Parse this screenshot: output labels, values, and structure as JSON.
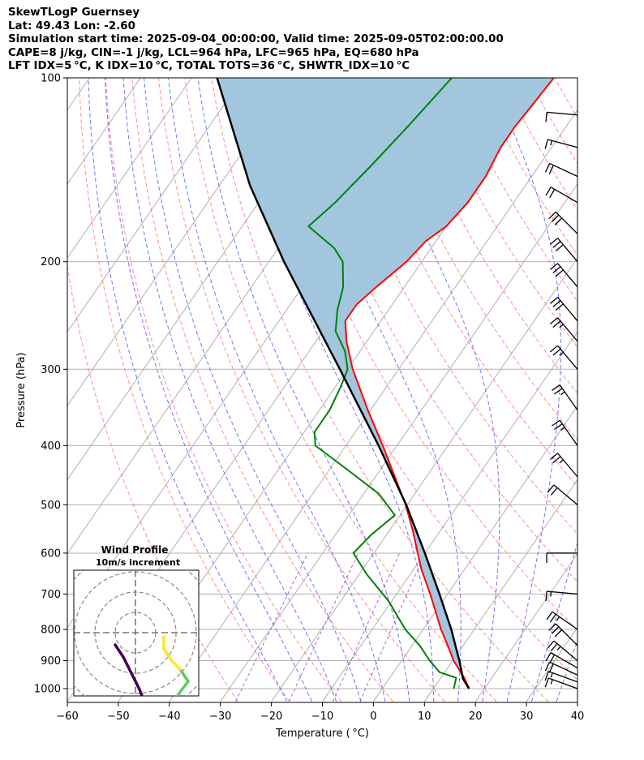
{
  "header": {
    "line1": "SkewTLogP Guernsey",
    "line2": "Lat: 49.43   Lon: -2.60",
    "line3": "Simulation start time: 2025-09-04_00:00:00, Valid time: 2025-09-05T02:00:00.00",
    "line4": "CAPE=8 j/kg, CIN=-1 j/kg, LCL=964 hPa, LFC=965 hPa, EQ=680 hPa",
    "line5": "LFT IDX=5 °C, K IDX=10 °C, TOTAL TOTS=36 °C, SHWTR_IDX=10 °C"
  },
  "chart_data": {
    "type": "line",
    "title": "SkewTLogP Guernsey",
    "xlabel": "Temperature ( °C)",
    "ylabel": "Pressure (hPa)",
    "xlim": [
      -60,
      40
    ],
    "ylim": [
      1050,
      100
    ],
    "x_ticks": [
      "−60",
      "−50",
      "−40",
      "−30",
      "−20",
      "−10",
      "0",
      "10",
      "20",
      "30",
      "40"
    ],
    "y_ticks": [
      "100",
      "200",
      "300",
      "400",
      "500",
      "600",
      "700",
      "800",
      "900",
      "1000"
    ],
    "colors": {
      "temperature": "#ff0000",
      "dewpoint": "#008000",
      "parcel": "#000000",
      "cape_fill": "#a3c6df",
      "dry_adiabat": "#ff7070",
      "moist_adiabat": "#5a5aff",
      "mixing_ratio": "#9940d0",
      "isotherm": "#b0b0b0"
    },
    "series": [
      {
        "name": "Temperature",
        "color": "#ff0000",
        "points": [
          {
            "p": 1000,
            "t": 17.0
          },
          {
            "p": 960,
            "t": 14.6
          },
          {
            "p": 900,
            "t": 10.2
          },
          {
            "p": 850,
            "t": 7.0
          },
          {
            "p": 800,
            "t": 3.5
          },
          {
            "p": 700,
            "t": -3.4
          },
          {
            "p": 640,
            "t": -8.3
          },
          {
            "p": 600,
            "t": -11.4
          },
          {
            "p": 550,
            "t": -15.5
          },
          {
            "p": 500,
            "t": -20.3
          },
          {
            "p": 450,
            "t": -26.2
          },
          {
            "p": 400,
            "t": -32.8
          },
          {
            "p": 350,
            "t": -40.5
          },
          {
            "p": 300,
            "t": -49.0
          },
          {
            "p": 270,
            "t": -54.0
          },
          {
            "p": 250,
            "t": -57.0
          },
          {
            "p": 235,
            "t": -57.0
          },
          {
            "p": 220,
            "t": -55.5
          },
          {
            "p": 200,
            "t": -53.0
          },
          {
            "p": 185,
            "t": -52.0
          },
          {
            "p": 175,
            "t": -50.0
          },
          {
            "p": 160,
            "t": -49.0
          },
          {
            "p": 145,
            "t": -49.0
          },
          {
            "p": 130,
            "t": -50.0
          },
          {
            "p": 120,
            "t": -50.0
          },
          {
            "p": 110,
            "t": -49.5
          },
          {
            "p": 100,
            "t": -49.0
          }
        ]
      },
      {
        "name": "Dewpoint",
        "color": "#008000",
        "points": [
          {
            "p": 1000,
            "t": 14.0
          },
          {
            "p": 960,
            "t": 13.0
          },
          {
            "p": 940,
            "t": 9.0
          },
          {
            "p": 900,
            "t": 5.5
          },
          {
            "p": 850,
            "t": 1.5
          },
          {
            "p": 800,
            "t": -3.5
          },
          {
            "p": 720,
            "t": -10.5
          },
          {
            "p": 650,
            "t": -18.5
          },
          {
            "p": 600,
            "t": -24.0
          },
          {
            "p": 560,
            "t": -23.0
          },
          {
            "p": 520,
            "t": -21.0
          },
          {
            "p": 480,
            "t": -27.0
          },
          {
            "p": 440,
            "t": -36.0
          },
          {
            "p": 400,
            "t": -46.0
          },
          {
            "p": 380,
            "t": -48.0
          },
          {
            "p": 350,
            "t": -48.0
          },
          {
            "p": 320,
            "t": -49.0
          },
          {
            "p": 300,
            "t": -50.0
          },
          {
            "p": 280,
            "t": -53.0
          },
          {
            "p": 260,
            "t": -57.5
          },
          {
            "p": 240,
            "t": -60.0
          },
          {
            "p": 220,
            "t": -62.0
          },
          {
            "p": 200,
            "t": -65.5
          },
          {
            "p": 190,
            "t": -69.0
          },
          {
            "p": 175,
            "t": -77.0
          },
          {
            "p": 160,
            "t": -75.0
          },
          {
            "p": 140,
            "t": -73.0
          },
          {
            "p": 120,
            "t": -71.0
          },
          {
            "p": 100,
            "t": -69.0
          }
        ]
      },
      {
        "name": "Parcel",
        "color": "#000000",
        "points": [
          {
            "p": 1000,
            "t": 17.0
          },
          {
            "p": 964,
            "t": 14.5
          },
          {
            "p": 900,
            "t": 11.3
          },
          {
            "p": 850,
            "t": 8.5
          },
          {
            "p": 800,
            "t": 5.5
          },
          {
            "p": 700,
            "t": -1.6
          },
          {
            "p": 600,
            "t": -10.0
          },
          {
            "p": 500,
            "t": -20.2
          },
          {
            "p": 400,
            "t": -33.6
          },
          {
            "p": 300,
            "t": -51.5
          },
          {
            "p": 250,
            "t": -63.0
          },
          {
            "p": 200,
            "t": -77.0
          },
          {
            "p": 150,
            "t": -94.0
          },
          {
            "p": 100,
            "t": -115.0
          }
        ]
      }
    ],
    "wind_barbs": [
      {
        "p": 1000,
        "speed_kt": 15,
        "dir_deg": 290
      },
      {
        "p": 975,
        "speed_kt": 15,
        "dir_deg": 290
      },
      {
        "p": 950,
        "speed_kt": 20,
        "dir_deg": 295
      },
      {
        "p": 925,
        "speed_kt": 20,
        "dir_deg": 300
      },
      {
        "p": 900,
        "speed_kt": 25,
        "dir_deg": 310
      },
      {
        "p": 850,
        "speed_kt": 30,
        "dir_deg": 315
      },
      {
        "p": 800,
        "speed_kt": 25,
        "dir_deg": 305
      },
      {
        "p": 700,
        "speed_kt": 15,
        "dir_deg": 275
      },
      {
        "p": 600,
        "speed_kt": 10,
        "dir_deg": 270
      },
      {
        "p": 500,
        "speed_kt": 20,
        "dir_deg": 310
      },
      {
        "p": 450,
        "speed_kt": 25,
        "dir_deg": 320
      },
      {
        "p": 400,
        "speed_kt": 25,
        "dir_deg": 325
      },
      {
        "p": 350,
        "speed_kt": 25,
        "dir_deg": 325
      },
      {
        "p": 300,
        "speed_kt": 25,
        "dir_deg": 320
      },
      {
        "p": 270,
        "speed_kt": 25,
        "dir_deg": 320
      },
      {
        "p": 250,
        "speed_kt": 30,
        "dir_deg": 320
      },
      {
        "p": 220,
        "speed_kt": 30,
        "dir_deg": 320
      },
      {
        "p": 200,
        "speed_kt": 30,
        "dir_deg": 320
      },
      {
        "p": 180,
        "speed_kt": 30,
        "dir_deg": 315
      },
      {
        "p": 160,
        "speed_kt": 20,
        "dir_deg": 300
      },
      {
        "p": 145,
        "speed_kt": 20,
        "dir_deg": 295
      },
      {
        "p": 130,
        "speed_kt": 15,
        "dir_deg": 285
      },
      {
        "p": 115,
        "speed_kt": 10,
        "dir_deg": 275
      }
    ],
    "hodograph": {
      "title": "Wind Profile",
      "subtitle": "10m/s increment",
      "ring_step_ms": 10,
      "points_uv": [
        [
          -2.5,
          -1.5
        ],
        [
          -1.5,
          -3.0
        ],
        [
          0.5,
          -7.0
        ],
        [
          2.0,
          -11.0
        ],
        [
          3.0,
          -13.5
        ],
        [
          4.5,
          -14.0
        ],
        [
          6.0,
          -14.5
        ],
        [
          7.5,
          -14.5
        ],
        [
          8.0,
          -14.0
        ],
        [
          6.5,
          -12.5
        ],
        [
          5.0,
          -10.0
        ],
        [
          5.0,
          -8.0
        ],
        [
          6.5,
          -6.0
        ],
        [
          5.5,
          -4.5
        ],
        [
          4.5,
          -3.5
        ],
        [
          3.5,
          -2.0
        ],
        [
          3.5,
          -0.5
        ]
      ]
    }
  }
}
